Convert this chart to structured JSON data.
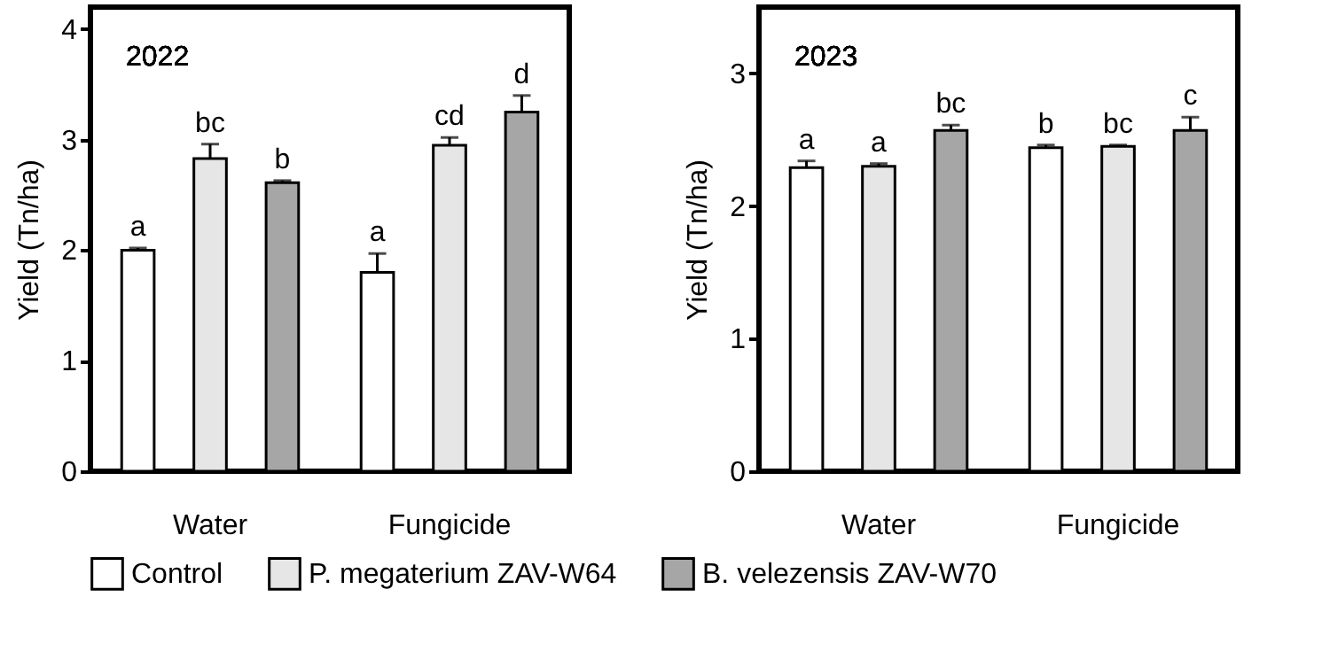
{
  "chart_data": [
    {
      "type": "bar",
      "title": "2022",
      "ylabel": "Yield (Tn/ha)",
      "categories": [
        "Water",
        "Fungicide"
      ],
      "ylim": [
        0,
        4.2
      ],
      "yticks": [
        0,
        1,
        2,
        3,
        4
      ],
      "grid": false,
      "legend": "bottom",
      "series": [
        {
          "name": "Control",
          "color": "#ffffff",
          "values": [
            2.0,
            1.8
          ],
          "errors": [
            0.02,
            0.17
          ],
          "value_labels": [
            "a",
            "a"
          ]
        },
        {
          "name": "P. megaterium ZAV-W64",
          "color": "#e6e6e6",
          "values": [
            2.83,
            2.95
          ],
          "errors": [
            0.13,
            0.07
          ],
          "value_labels": [
            "bc",
            "cd"
          ]
        },
        {
          "name": "B. velezensis ZAV-W70",
          "color": "#a6a6a6",
          "values": [
            2.61,
            3.25
          ],
          "errors": [
            0.02,
            0.15
          ],
          "value_labels": [
            "b",
            "d"
          ]
        }
      ]
    },
    {
      "type": "bar",
      "title": "2023",
      "ylabel": "Yield (Tn/ha)",
      "categories": [
        "Water",
        "Fungicide"
      ],
      "ylim": [
        0,
        3.5
      ],
      "yticks": [
        0,
        1,
        2,
        3
      ],
      "grid": false,
      "legend": "bottom",
      "series": [
        {
          "name": "Control",
          "color": "#ffffff",
          "values": [
            2.29,
            2.44
          ],
          "errors": [
            0.05,
            0.02
          ],
          "value_labels": [
            "a",
            "b"
          ]
        },
        {
          "name": "P. megaterium ZAV-W64",
          "color": "#e6e6e6",
          "values": [
            2.3,
            2.45
          ],
          "errors": [
            0.02,
            0.01
          ],
          "value_labels": [
            "a",
            "bc"
          ]
        },
        {
          "name": "B. velezensis ZAV-W70",
          "color": "#a6a6a6",
          "values": [
            2.57,
            2.57
          ],
          "errors": [
            0.04,
            0.1
          ],
          "value_labels": [
            "bc",
            "c"
          ]
        }
      ]
    }
  ]
}
